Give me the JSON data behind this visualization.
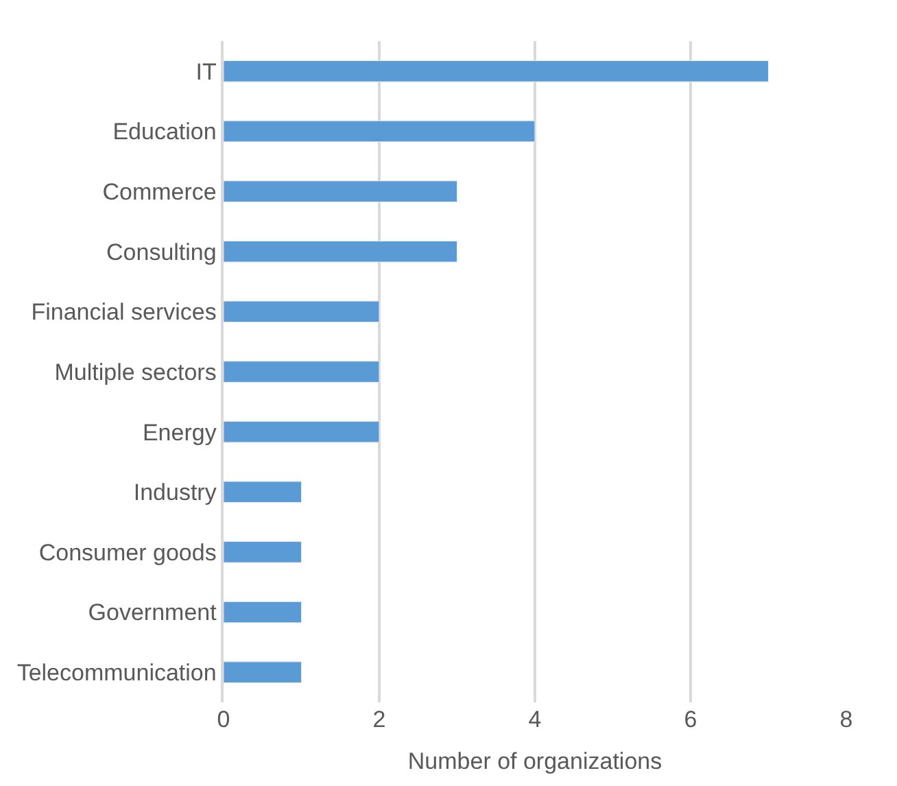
{
  "chart_data": {
    "type": "bar",
    "orientation": "horizontal",
    "xlabel": "Number of organizations",
    "categories": [
      "IT",
      "Education",
      "Commerce",
      "Consulting",
      "Financial services",
      "Multiple sectors",
      "Energy",
      "Industry",
      "Consumer goods",
      "Government",
      "Telecommunication"
    ],
    "values": [
      7,
      4,
      3,
      3,
      2,
      2,
      2,
      1,
      1,
      1,
      1
    ],
    "color": "#5b9bd5",
    "xlim": [
      0,
      8
    ],
    "xticks": [
      0,
      2,
      4,
      6,
      8
    ],
    "grid": "x"
  }
}
